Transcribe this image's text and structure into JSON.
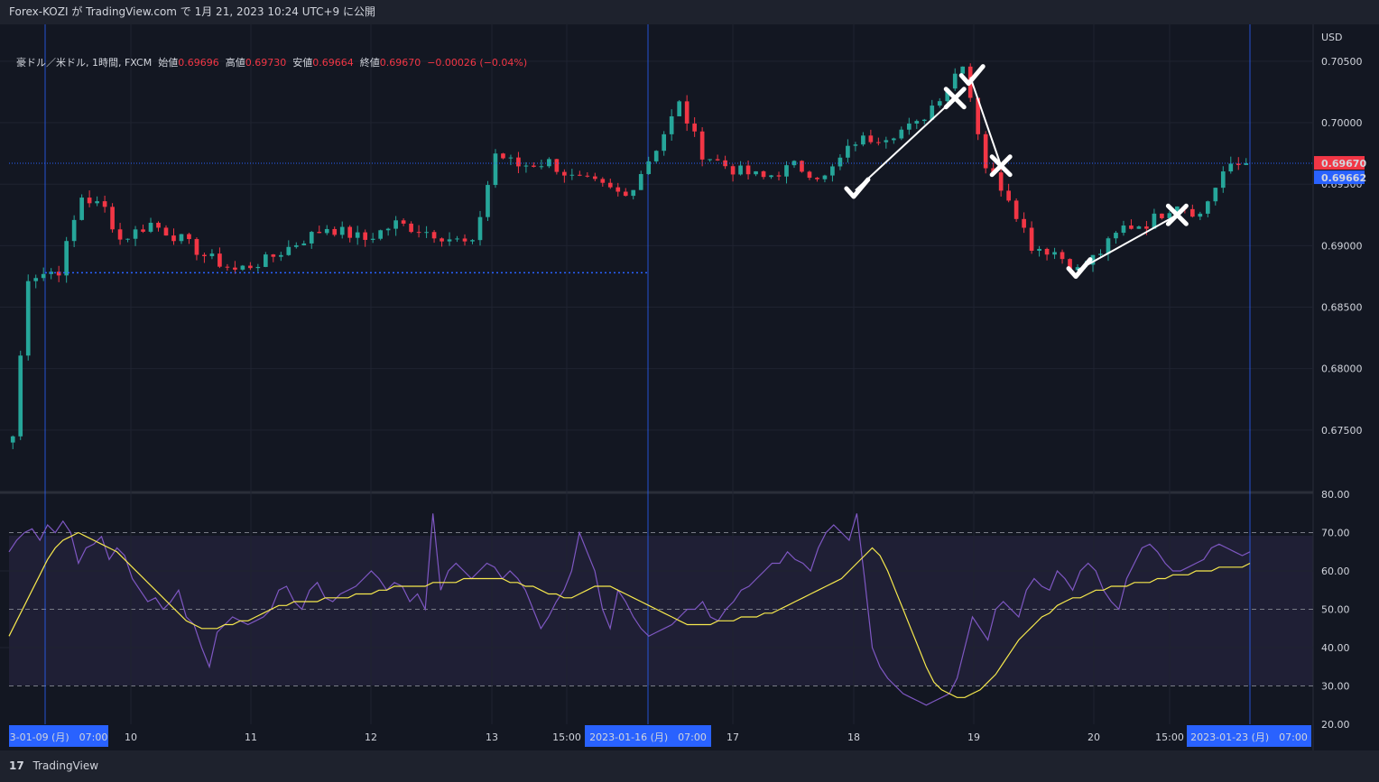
{
  "header": {
    "publish_line": "Forex-KOZI が TradingView.com で 1月 21, 2023 10:24 UTC+9 に公開"
  },
  "legend": {
    "symbol": "豪ドル／米ドル, 1時間, FXCM",
    "open_label": "始値",
    "open": "0.69696",
    "high_label": "高値",
    "high": "0.69730",
    "low_label": "安値",
    "low": "0.69664",
    "close_label": "終値",
    "close": "0.69670",
    "change": "−0.00026 (−0.04%)"
  },
  "price_axis": {
    "unit": "USD",
    "ticks": [
      "0.70500",
      "0.70000",
      "0.69500",
      "0.69000",
      "0.68500",
      "0.68000",
      "0.67500"
    ],
    "last_price_badge": "0.69670",
    "second_badge": "0.69662",
    "colors": {
      "up": "#26a69a",
      "down": "#f23645",
      "last": "#f23645",
      "second": "#2962ff"
    }
  },
  "rsi_axis": {
    "ticks": [
      "80.00",
      "70.00",
      "60.00",
      "50.00",
      "40.00",
      "30.00",
      "20.00"
    ]
  },
  "time_axis": {
    "labels": [
      "10",
      "11",
      "12",
      "13",
      "15:00",
      "17",
      "18",
      "19",
      "20",
      "15:00"
    ],
    "badges": [
      "3-01-09 (月)　07:00",
      "2023-01-16 (月)　07:00",
      "2023-01-23 (月)　07:00"
    ]
  },
  "footer": {
    "brand": "TradingView",
    "logo": "17"
  },
  "chart_data": [
    {
      "type": "candlestick",
      "title": "",
      "ylabel": "USD",
      "ylim": [
        0.67,
        0.708
      ],
      "x_range_days": [
        "2023-01-09",
        "2023-01-23"
      ],
      "anchors": [
        {
          "t": 0,
          "price": 0.6745
        },
        {
          "t": 2,
          "price": 0.6875
        },
        {
          "t": 6,
          "price": 0.688
        },
        {
          "t": 9,
          "price": 0.694
        },
        {
          "t": 12,
          "price": 0.693
        },
        {
          "t": 14,
          "price": 0.6905
        },
        {
          "t": 18,
          "price": 0.6918
        },
        {
          "t": 22,
          "price": 0.6905
        },
        {
          "t": 25,
          "price": 0.6892
        },
        {
          "t": 29,
          "price": 0.688
        },
        {
          "t": 33,
          "price": 0.6888
        },
        {
          "t": 37,
          "price": 0.6902
        },
        {
          "t": 41,
          "price": 0.6915
        },
        {
          "t": 46,
          "price": 0.6905
        },
        {
          "t": 50,
          "price": 0.6918
        },
        {
          "t": 55,
          "price": 0.691
        },
        {
          "t": 60,
          "price": 0.69
        },
        {
          "t": 63,
          "price": 0.6975
        },
        {
          "t": 66,
          "price": 0.6965
        },
        {
          "t": 70,
          "price": 0.6968
        },
        {
          "t": 73,
          "price": 0.6955
        },
        {
          "t": 76,
          "price": 0.695
        },
        {
          "t": 80,
          "price": 0.694
        },
        {
          "t": 84,
          "price": 0.698
        },
        {
          "t": 87,
          "price": 0.7015
        },
        {
          "t": 90,
          "price": 0.6975
        },
        {
          "t": 94,
          "price": 0.6962
        },
        {
          "t": 98,
          "price": 0.6955
        },
        {
          "t": 102,
          "price": 0.6965
        },
        {
          "t": 106,
          "price": 0.6955
        },
        {
          "t": 110,
          "price": 0.6985
        },
        {
          "t": 114,
          "price": 0.699
        },
        {
          "t": 118,
          "price": 0.6998
        },
        {
          "t": 122,
          "price": 0.703
        },
        {
          "t": 124,
          "price": 0.705
        },
        {
          "t": 127,
          "price": 0.6965
        },
        {
          "t": 130,
          "price": 0.694
        },
        {
          "t": 133,
          "price": 0.69
        },
        {
          "t": 136,
          "price": 0.6895
        },
        {
          "t": 139,
          "price": 0.688
        },
        {
          "t": 142,
          "price": 0.6895
        },
        {
          "t": 145,
          "price": 0.6915
        },
        {
          "t": 148,
          "price": 0.6918
        },
        {
          "t": 152,
          "price": 0.6935
        },
        {
          "t": 155,
          "price": 0.6925
        },
        {
          "t": 158,
          "price": 0.696
        },
        {
          "t": 161,
          "price": 0.6968
        }
      ],
      "candle_count": 162,
      "last_close": 0.6967
    },
    {
      "type": "line",
      "title": "",
      "ylim": [
        20,
        80
      ],
      "bands": [
        30,
        50,
        70
      ],
      "series": [
        {
          "color": "#7e57c2",
          "values": [
            65,
            68,
            70,
            71,
            68,
            72,
            70,
            73,
            70,
            62,
            66,
            67,
            69,
            63,
            66,
            64,
            58,
            55,
            52,
            53,
            50,
            52,
            55,
            48,
            46,
            40,
            35,
            44,
            46,
            48,
            47,
            46,
            47,
            48,
            50,
            55,
            56,
            52,
            50,
            55,
            57,
            53,
            52,
            54,
            55,
            56,
            58,
            60,
            58,
            55,
            57,
            56,
            52,
            54,
            50,
            75,
            55,
            60,
            62,
            60,
            58,
            60,
            62,
            61,
            58,
            60,
            58,
            55,
            50,
            45,
            48,
            52,
            55,
            60,
            70,
            65,
            60,
            50,
            45,
            55,
            52,
            48,
            45,
            43,
            44,
            45,
            46,
            48,
            50,
            50,
            52,
            48,
            47,
            50,
            52,
            55,
            56,
            58,
            60,
            62,
            62,
            65,
            63,
            62,
            60,
            66,
            70,
            72,
            70,
            68,
            75,
            58,
            40,
            35,
            32,
            30,
            28,
            27,
            26,
            25,
            26,
            27,
            28,
            32,
            40,
            48,
            45,
            42,
            50,
            52,
            50,
            48,
            55,
            58,
            56,
            55,
            60,
            58,
            55,
            60,
            62,
            60,
            55,
            52,
            50,
            58,
            62,
            66,
            67,
            65,
            62,
            60,
            60,
            61,
            62,
            63,
            66,
            67,
            66,
            65,
            64,
            65
          ]
        },
        {
          "color": "#f7e94d",
          "values": [
            43,
            47,
            51,
            55,
            59,
            63,
            66,
            68,
            69,
            70,
            69,
            68,
            67,
            66,
            65,
            63,
            61,
            59,
            57,
            55,
            53,
            51,
            49,
            47,
            46,
            45,
            45,
            45,
            46,
            46,
            47,
            47,
            48,
            49,
            50,
            51,
            51,
            52,
            52,
            52,
            52,
            53,
            53,
            53,
            53,
            54,
            54,
            54,
            55,
            55,
            56,
            56,
            56,
            56,
            56,
            57,
            57,
            57,
            57,
            58,
            58,
            58,
            58,
            58,
            58,
            57,
            57,
            56,
            56,
            55,
            54,
            54,
            53,
            53,
            54,
            55,
            56,
            56,
            56,
            55,
            54,
            53,
            52,
            51,
            50,
            49,
            48,
            47,
            46,
            46,
            46,
            46,
            47,
            47,
            47,
            48,
            48,
            48,
            49,
            49,
            50,
            51,
            52,
            53,
            54,
            55,
            56,
            57,
            58,
            60,
            62,
            64,
            66,
            64,
            60,
            55,
            50,
            45,
            40,
            35,
            31,
            29,
            28,
            27,
            27,
            28,
            29,
            31,
            33,
            36,
            39,
            42,
            44,
            46,
            48,
            49,
            51,
            52,
            53,
            53,
            54,
            55,
            55,
            56,
            56,
            56,
            57,
            57,
            57,
            58,
            58,
            59,
            59,
            59,
            60,
            60,
            60,
            61,
            61,
            61,
            61,
            62
          ]
        }
      ]
    }
  ],
  "annotations": {
    "color": "#ffffff",
    "checks": [
      "check-icon",
      "check-icon",
      "check-icon"
    ],
    "crosses": [
      "cross-icon",
      "cross-icon",
      "cross-icon"
    ]
  }
}
